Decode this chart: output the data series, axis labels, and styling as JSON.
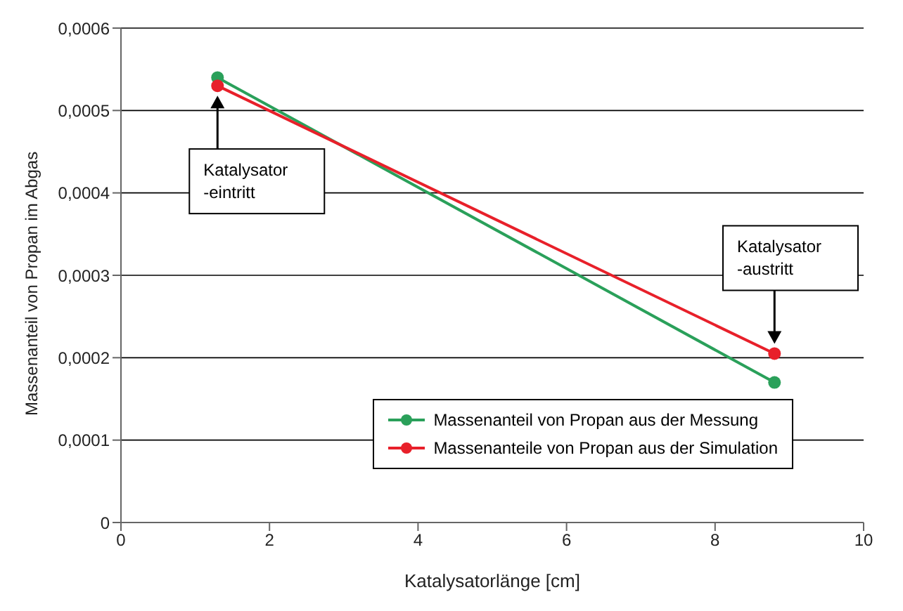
{
  "chart_data": {
    "type": "line",
    "xlabel": "Katalysatorlänge [cm]",
    "ylabel": "Massenanteil von Propan im Abgas",
    "x": [
      1.3,
      8.8
    ],
    "series": [
      {
        "name": "Massenanteil von Propan aus der Messung",
        "color": "#2aa05a",
        "values": [
          0.00054,
          0.00017
        ]
      },
      {
        "name": "Massenanteile von Propan aus der Simulation",
        "color": "#e8202a",
        "values": [
          0.00053,
          0.000205
        ]
      }
    ],
    "xlim": [
      0,
      10
    ],
    "xticks": [
      0,
      2,
      4,
      6,
      8,
      10
    ],
    "ylim": [
      0,
      0.0006
    ],
    "yticks": [
      {
        "value": 0,
        "label": "0"
      },
      {
        "value": 0.0001,
        "label": "0,0001"
      },
      {
        "value": 0.0002,
        "label": "0,0002"
      },
      {
        "value": 0.0003,
        "label": "0,0003"
      },
      {
        "value": 0.0004,
        "label": "0,0004"
      },
      {
        "value": 0.0005,
        "label": "0,0005"
      },
      {
        "value": 0.0006,
        "label": "0,0006"
      }
    ],
    "grid": "y",
    "legend": "bottom right",
    "marker": "circle",
    "annotations": [
      "Katalysator\n-eintritt",
      "Katalysator\n-austritt"
    ]
  }
}
